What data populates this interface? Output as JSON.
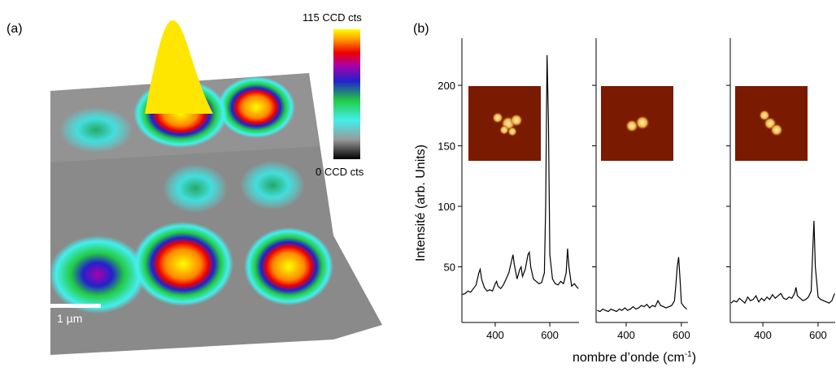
{
  "panel_a": {
    "label": "(a)",
    "colorbar_max": "115 CCD cts",
    "colorbar_min": "0 CCD cts",
    "scale_bar": "1 µm"
  },
  "panel_b": {
    "label": "(b)",
    "ylabel": "Intensité (arb. Units)",
    "xlabel": "nombre d’onde (cm",
    "xlabel_sup": "-1",
    "xlabel_end": ")"
  },
  "chart_data": [
    {
      "type": "line",
      "color": "#000000",
      "ytick_labels": true,
      "xlim": [
        278,
        707
      ],
      "xticks": [
        400,
        600
      ],
      "ylim": [
        4,
        239
      ],
      "yticks": [
        50,
        100,
        150,
        200
      ],
      "x": [
        280,
        290,
        300,
        310,
        320,
        330,
        340,
        345,
        350,
        360,
        370,
        380,
        390,
        400,
        405,
        410,
        420,
        430,
        440,
        450,
        460,
        465,
        470,
        480,
        490,
        495,
        500,
        510,
        520,
        525,
        530,
        540,
        550,
        560,
        570,
        580,
        585,
        590,
        595,
        600,
        610,
        620,
        630,
        640,
        650,
        660,
        665,
        670,
        680,
        690,
        700,
        705
      ],
      "values": [
        27,
        28,
        30,
        29,
        32,
        35,
        45,
        48,
        40,
        33,
        30,
        31,
        30,
        36,
        38,
        34,
        32,
        35,
        40,
        45,
        55,
        60,
        52,
        40,
        48,
        50,
        42,
        48,
        60,
        62,
        50,
        40,
        38,
        36,
        37,
        45,
        100,
        225,
        170,
        60,
        40,
        36,
        35,
        38,
        36,
        45,
        65,
        50,
        34,
        36,
        33,
        32
      ]
    },
    {
      "type": "line",
      "color": "#000000",
      "ytick_labels": false,
      "xlim": [
        291,
        624
      ],
      "xticks": [
        400,
        600
      ],
      "ylim": [
        4,
        239
      ],
      "yticks": [
        50,
        100,
        150,
        200
      ],
      "x": [
        295,
        305,
        315,
        325,
        335,
        345,
        355,
        365,
        375,
        385,
        395,
        405,
        415,
        425,
        435,
        445,
        455,
        465,
        475,
        485,
        495,
        505,
        515,
        525,
        535,
        545,
        555,
        565,
        575,
        580,
        585,
        590,
        595,
        600,
        610,
        620
      ],
      "values": [
        14,
        13,
        15,
        14,
        13,
        15,
        14,
        13,
        15,
        14,
        16,
        14,
        15,
        17,
        15,
        16,
        18,
        17,
        19,
        16,
        18,
        17,
        22,
        18,
        17,
        16,
        17,
        18,
        22,
        35,
        50,
        58,
        40,
        20,
        17,
        15
      ]
    },
    {
      "type": "line",
      "color": "#000000",
      "ytick_labels": false,
      "xlim": [
        282,
        662
      ],
      "xticks": [
        400,
        600
      ],
      "ylim": [
        4,
        239
      ],
      "yticks": [
        50,
        100,
        150,
        200
      ],
      "x": [
        285,
        295,
        305,
        315,
        325,
        335,
        345,
        355,
        365,
        375,
        385,
        395,
        405,
        415,
        425,
        435,
        445,
        455,
        465,
        475,
        485,
        495,
        505,
        515,
        520,
        525,
        535,
        545,
        555,
        565,
        575,
        580,
        585,
        590,
        600,
        610,
        620,
        630,
        640,
        650,
        660
      ],
      "values": [
        20,
        22,
        21,
        24,
        22,
        20,
        25,
        22,
        23,
        26,
        21,
        24,
        22,
        25,
        23,
        27,
        24,
        26,
        28,
        24,
        23,
        25,
        24,
        28,
        33,
        26,
        24,
        22,
        23,
        25,
        30,
        60,
        88,
        50,
        25,
        23,
        22,
        21,
        20,
        22,
        28
      ]
    }
  ]
}
